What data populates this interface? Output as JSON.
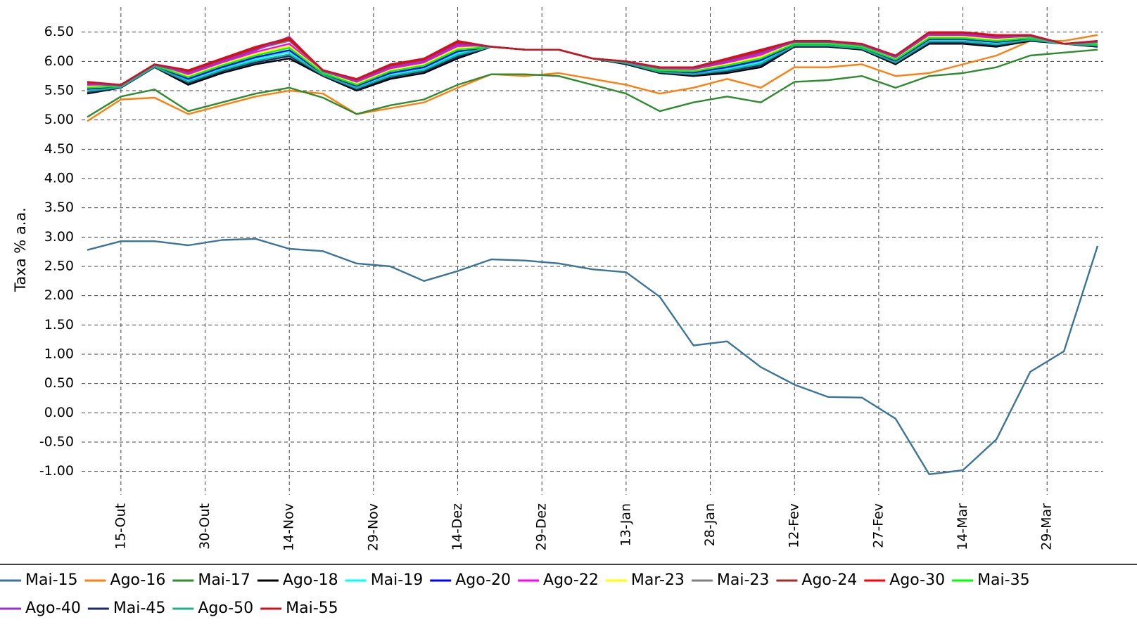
{
  "chart_data": {
    "type": "line",
    "y_label": "Taxa % a.a.",
    "grid": true,
    "legend": "bottom",
    "xlim": [
      -7,
      175
    ],
    "ylim": [
      -1.4,
      7.0
    ],
    "xticks": [
      {
        "value": 0,
        "label": "15-Out"
      },
      {
        "value": 15,
        "label": "30-Out"
      },
      {
        "value": 30,
        "label": "14-Nov"
      },
      {
        "value": 45,
        "label": "29-Nov"
      },
      {
        "value": 60,
        "label": "14-Dez"
      },
      {
        "value": 75,
        "label": "29-Dez"
      },
      {
        "value": 90,
        "label": "13-Jan"
      },
      {
        "value": 105,
        "label": "28-Jan"
      },
      {
        "value": 120,
        "label": "12-Fev"
      },
      {
        "value": 135,
        "label": "27-Fev"
      },
      {
        "value": 150,
        "label": "14-Mar"
      },
      {
        "value": 165,
        "label": "29-Mar"
      }
    ],
    "yticks": [
      {
        "value": -1,
        "label": "-1.00"
      },
      {
        "value": -0.5,
        "label": "-0.50"
      },
      {
        "value": 0,
        "label": "0.00"
      },
      {
        "value": 0.5,
        "label": "0.50"
      },
      {
        "value": 1,
        "label": "1.00"
      },
      {
        "value": 1.5,
        "label": "1.50"
      },
      {
        "value": 2,
        "label": "2.00"
      },
      {
        "value": 2.5,
        "label": "2.50"
      },
      {
        "value": 3,
        "label": "3.00"
      },
      {
        "value": 3.5,
        "label": "3.50"
      },
      {
        "value": 4,
        "label": "4.00"
      },
      {
        "value": 4.5,
        "label": "4.50"
      },
      {
        "value": 5,
        "label": "5.00"
      },
      {
        "value": 5.5,
        "label": "5.50"
      },
      {
        "value": 6,
        "label": "6.00"
      },
      {
        "value": 6.5,
        "label": "6.50"
      }
    ],
    "x": [
      -6,
      0,
      6,
      12,
      18,
      24,
      30,
      36,
      42,
      48,
      54,
      60,
      66,
      72,
      78,
      84,
      90,
      96,
      102,
      108,
      114,
      120,
      126,
      132,
      138,
      144,
      150,
      156,
      162,
      168,
      174
    ],
    "series": [
      {
        "name": "Mai-15",
        "color": "#3a7497",
        "values": [
          2.78,
          2.93,
          2.93,
          2.86,
          2.95,
          2.97,
          2.8,
          2.76,
          2.55,
          2.5,
          2.25,
          2.42,
          2.62,
          2.6,
          2.55,
          2.45,
          2.4,
          1.98,
          1.15,
          1.22,
          0.78,
          0.48,
          0.27,
          0.26,
          -0.1,
          -1.05,
          -0.98,
          -0.45,
          0.7,
          1.05,
          2.85
        ]
      },
      {
        "name": "Ago-16",
        "color": "#ff7f0e",
        "values": [
          4.98,
          5.35,
          5.38,
          5.1,
          5.25,
          5.4,
          5.5,
          5.45,
          5.1,
          5.2,
          5.3,
          5.55,
          5.78,
          5.75,
          5.8,
          5.7,
          5.6,
          5.45,
          5.55,
          5.7,
          5.55,
          5.9,
          5.9,
          5.95,
          5.75,
          5.8,
          5.95,
          6.1,
          6.35,
          6.35,
          6.45
        ]
      },
      {
        "name": "Mai-17",
        "color": "#2e8b2e",
        "values": [
          5.05,
          5.4,
          5.52,
          5.15,
          5.3,
          5.45,
          5.55,
          5.38,
          5.1,
          5.25,
          5.35,
          5.6,
          5.78,
          5.78,
          5.75,
          5.6,
          5.45,
          5.15,
          5.3,
          5.4,
          5.3,
          5.65,
          5.68,
          5.75,
          5.55,
          5.75,
          5.8,
          5.9,
          6.1,
          6.15,
          6.2
        ]
      },
      {
        "name": "Ago-18",
        "color": "#000000",
        "values": [
          5.45,
          5.55,
          5.9,
          5.6,
          5.8,
          5.95,
          6.05,
          5.75,
          5.5,
          5.7,
          5.8,
          6.05,
          6.25,
          6.2,
          6.2,
          6.05,
          5.95,
          5.8,
          5.75,
          5.8,
          5.9,
          6.25,
          6.25,
          6.2,
          5.95,
          6.3,
          6.3,
          6.25,
          6.35,
          6.3,
          6.25
        ]
      },
      {
        "name": "Mai-19",
        "color": "#00ffff",
        "values": [
          5.51,
          5.57,
          5.92,
          5.68,
          5.88,
          6.04,
          6.16,
          5.78,
          5.56,
          5.78,
          5.88,
          6.14,
          6.25,
          6.2,
          6.2,
          6.05,
          5.97,
          5.83,
          5.8,
          5.88,
          5.99,
          6.28,
          6.28,
          6.23,
          6.0,
          6.36,
          6.36,
          6.31,
          6.38,
          6.3,
          6.28
        ]
      },
      {
        "name": "Ago-20",
        "color": "#0000ff",
        "values": [
          5.53,
          5.57,
          5.92,
          5.7,
          5.9,
          6.07,
          6.19,
          5.79,
          5.58,
          5.8,
          5.9,
          6.17,
          6.25,
          6.2,
          6.2,
          6.05,
          5.97,
          5.84,
          5.81,
          5.9,
          6.02,
          6.29,
          6.29,
          6.24,
          6.01,
          6.38,
          6.38,
          6.33,
          6.39,
          6.3,
          6.29
        ]
      },
      {
        "name": "Ago-22",
        "color": "#ff00ff",
        "values": [
          5.59,
          5.59,
          5.94,
          5.78,
          5.98,
          6.16,
          6.3,
          5.82,
          5.64,
          5.88,
          5.98,
          6.26,
          6.25,
          6.2,
          6.2,
          6.05,
          5.99,
          5.87,
          5.86,
          5.98,
          6.11,
          6.32,
          6.32,
          6.27,
          6.06,
          6.44,
          6.44,
          6.39,
          6.42,
          6.3,
          6.32
        ]
      },
      {
        "name": "Mar-23",
        "color": "#ffff00",
        "values": [
          5.57,
          5.58,
          5.93,
          5.75,
          5.95,
          6.13,
          6.26,
          5.81,
          5.62,
          5.85,
          5.95,
          6.23,
          6.25,
          6.2,
          6.2,
          6.05,
          5.98,
          5.86,
          5.84,
          5.95,
          6.08,
          6.31,
          6.31,
          6.26,
          6.04,
          6.42,
          6.42,
          6.37,
          6.41,
          6.3,
          6.31
        ]
      },
      {
        "name": "Mai-23",
        "color": "#808080",
        "values": [
          5.62,
          5.59,
          5.94,
          5.81,
          6.01,
          6.21,
          6.35,
          5.84,
          5.67,
          5.91,
          6.01,
          6.31,
          6.25,
          6.2,
          6.2,
          6.05,
          6.0,
          5.89,
          5.88,
          6.01,
          6.16,
          6.34,
          6.34,
          6.29,
          6.08,
          6.47,
          6.47,
          6.42,
          6.44,
          6.3,
          6.34
        ]
      },
      {
        "name": "Ago-24",
        "color": "#a52a2a",
        "values": [
          5.63,
          5.6,
          5.95,
          5.83,
          6.03,
          6.22,
          6.37,
          5.84,
          5.68,
          5.93,
          6.03,
          6.32,
          6.25,
          6.2,
          6.2,
          6.05,
          6.0,
          5.89,
          5.89,
          6.03,
          6.17,
          6.34,
          6.34,
          6.29,
          6.09,
          6.48,
          6.48,
          6.43,
          6.44,
          6.3,
          6.34
        ]
      },
      {
        "name": "Ago-30",
        "color": "#ff0000",
        "values": [
          5.64,
          5.6,
          5.95,
          5.84,
          6.04,
          6.24,
          6.39,
          5.85,
          5.69,
          5.94,
          6.04,
          6.34,
          6.25,
          6.2,
          6.2,
          6.05,
          6.0,
          5.9,
          5.9,
          6.04,
          6.19,
          6.35,
          6.35,
          6.3,
          6.1,
          6.49,
          6.49,
          6.44,
          6.45,
          6.3,
          6.35
        ]
      },
      {
        "name": "Mai-35",
        "color": "#00ff00",
        "values": [
          5.55,
          5.58,
          5.93,
          5.73,
          5.93,
          6.1,
          6.23,
          5.8,
          5.6,
          5.83,
          5.93,
          6.2,
          6.25,
          6.2,
          6.2,
          6.05,
          5.98,
          5.85,
          5.83,
          5.93,
          6.05,
          6.3,
          6.3,
          6.25,
          6.03,
          6.4,
          6.4,
          6.35,
          6.4,
          6.3,
          6.3
        ]
      },
      {
        "name": "Ago-40",
        "color": "#9932cc",
        "values": [
          5.61,
          5.59,
          5.94,
          5.8,
          6.0,
          6.19,
          6.42,
          5.83,
          5.66,
          5.9,
          6.0,
          6.29,
          6.25,
          6.2,
          6.2,
          6.05,
          5.99,
          5.88,
          5.87,
          6.0,
          6.14,
          6.33,
          6.33,
          6.28,
          6.07,
          6.46,
          6.46,
          6.41,
          6.43,
          6.3,
          6.33
        ]
      },
      {
        "name": "Mai-45",
        "color": "#1a2a6c",
        "values": [
          5.47,
          5.55,
          5.9,
          5.63,
          5.83,
          5.98,
          6.09,
          5.76,
          5.52,
          5.73,
          5.83,
          6.08,
          6.25,
          6.2,
          6.2,
          6.05,
          5.96,
          5.81,
          5.77,
          5.83,
          5.93,
          6.26,
          6.26,
          6.21,
          5.97,
          6.32,
          6.32,
          6.27,
          6.36,
          6.3,
          6.26
        ]
      },
      {
        "name": "Ago-50",
        "color": "#20b08a",
        "values": [
          5.49,
          5.56,
          5.91,
          5.65,
          5.85,
          6.01,
          6.12,
          5.77,
          5.54,
          5.75,
          5.85,
          6.11,
          6.25,
          6.2,
          6.2,
          6.05,
          5.97,
          5.82,
          5.78,
          5.85,
          5.96,
          6.27,
          6.27,
          6.22,
          5.98,
          6.34,
          6.34,
          6.29,
          6.37,
          6.3,
          6.27
        ]
      },
      {
        "name": "Mai-55",
        "color": "#d0101a",
        "values": [
          5.65,
          5.6,
          5.95,
          5.85,
          6.05,
          6.25,
          6.4,
          5.85,
          5.7,
          5.95,
          6.05,
          6.35,
          6.25,
          6.2,
          6.2,
          6.05,
          6.0,
          5.9,
          5.9,
          6.05,
          6.2,
          6.35,
          6.35,
          6.3,
          6.1,
          6.5,
          6.5,
          6.45,
          6.45,
          6.3,
          6.35
        ]
      }
    ]
  }
}
